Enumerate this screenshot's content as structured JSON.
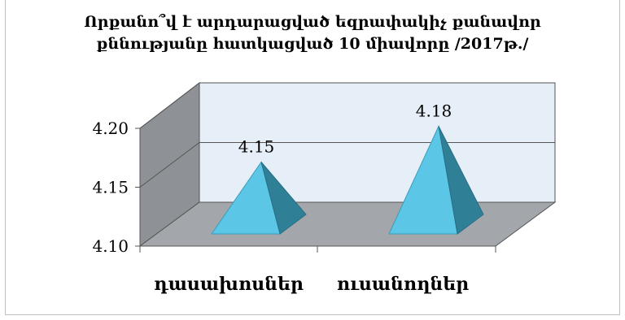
{
  "chart_data": {
    "type": "bar",
    "title_lines": [
      "Որքանո՞վ է արդարացված եզրափակիչ քանավոր",
      "քննությանը հատկացված 10 միավորը /2017թ./"
    ],
    "categories": [
      "դասախոսներ",
      "ուսանողներ"
    ],
    "values": [
      4.15,
      4.18
    ],
    "data_labels": [
      "4.15",
      "4.18"
    ],
    "y_ticks": [
      "4.10",
      "4.15",
      "4.20"
    ],
    "ylim": [
      4.1,
      4.2
    ],
    "grid": true,
    "legend": "none",
    "colors": {
      "pyramid_light": "#5bc6e6",
      "pyramid_dark": "#2f7f96",
      "wall": "#e6eef7",
      "side_wall": "#8e9196",
      "floor": "#a3a6aa"
    }
  }
}
